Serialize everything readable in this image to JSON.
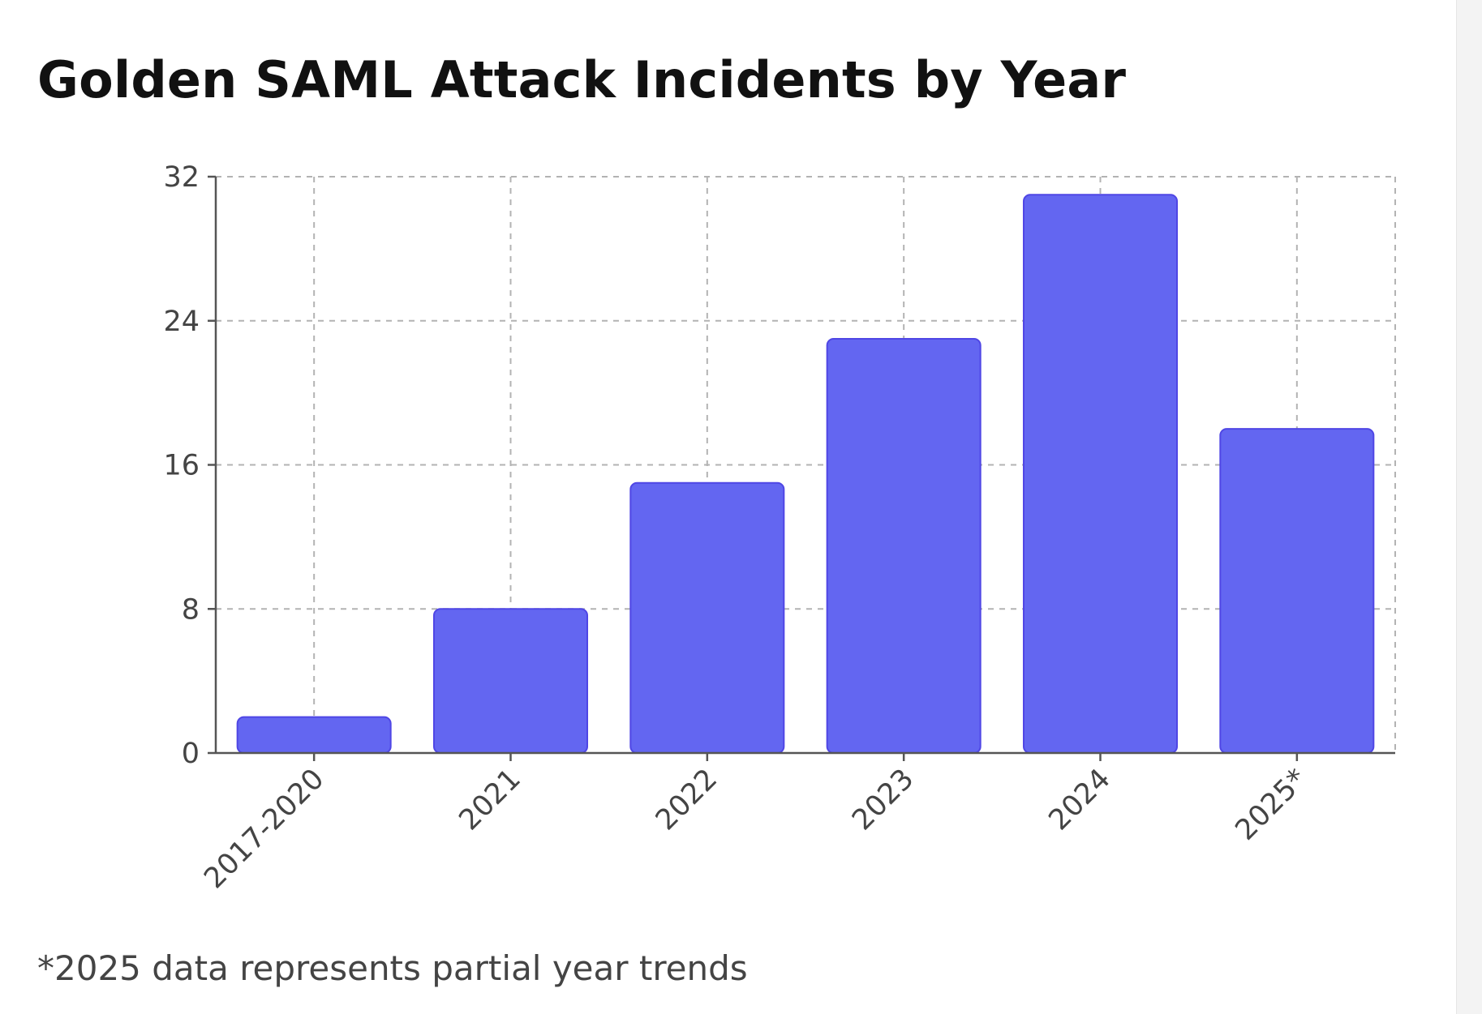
{
  "title": "Golden SAML Attack Incidents by Year",
  "footnote": "*2025 data represents partial year trends",
  "colors": {
    "bar_fill": "#6366f1",
    "bar_stroke": "#4f46e5",
    "grid": "#b3b3b3",
    "axis": "#555555",
    "text": "#444444"
  },
  "chart_data": {
    "type": "bar",
    "categories": [
      "2017-2020",
      "2021",
      "2022",
      "2023",
      "2024",
      "2025*"
    ],
    "values": [
      2,
      8,
      15,
      23,
      31,
      18
    ],
    "title": "Golden SAML Attack Incidents by Year",
    "xlabel": "",
    "ylabel": "",
    "ylim": [
      0,
      32
    ],
    "yticks": [
      0,
      8,
      16,
      24,
      32
    ],
    "grid": true,
    "legend": "none"
  }
}
